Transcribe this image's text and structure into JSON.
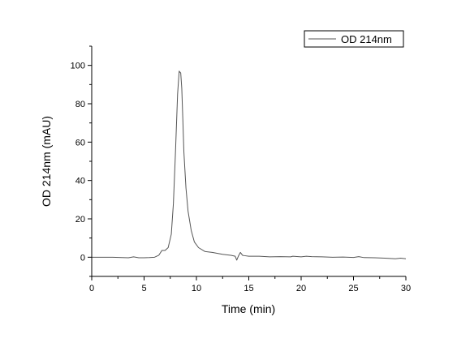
{
  "chart_data": {
    "type": "line",
    "title": "",
    "xlabel": "Time (min)",
    "ylabel": "OD 214nm (mAU)",
    "xlim": [
      0,
      30
    ],
    "ylim": [
      -10,
      110
    ],
    "xticks": [
      0,
      5,
      10,
      15,
      20,
      25,
      30
    ],
    "yticks": [
      0,
      20,
      40,
      60,
      80,
      100
    ],
    "grid": false,
    "legend_position": "top-right",
    "colors": {
      "line": "#555555",
      "axis": "#000000"
    },
    "series": [
      {
        "name": "OD 214nm",
        "x": [
          0,
          2,
          3.5,
          4,
          4.5,
          5,
          5.5,
          6,
          6.4,
          6.7,
          7.0,
          7.3,
          7.6,
          7.8,
          8.0,
          8.2,
          8.35,
          8.5,
          8.6,
          8.7,
          8.8,
          9.0,
          9.2,
          9.5,
          9.8,
          10.2,
          10.8,
          11.5,
          12.5,
          13.3,
          13.7,
          13.85,
          14.0,
          14.2,
          14.4,
          14.6,
          15.0,
          16,
          17,
          18,
          19,
          19.2,
          20,
          20.5,
          21,
          22,
          23,
          24,
          25,
          25.5,
          26,
          27,
          28,
          29,
          29.5,
          30
        ],
        "y": [
          0,
          0,
          -0.3,
          0.2,
          -0.3,
          -0.3,
          -0.2,
          0,
          1,
          3.5,
          3.5,
          5,
          12,
          28,
          55,
          85,
          97,
          96,
          88,
          72,
          55,
          36,
          24,
          14,
          8,
          5,
          3,
          2.5,
          1.5,
          1,
          0.5,
          -1.5,
          0.5,
          2.5,
          1,
          0.8,
          0.5,
          0.5,
          0.2,
          0.3,
          0.2,
          0.5,
          0.2,
          0.5,
          0.3,
          0.2,
          0,
          0.1,
          -0.1,
          0.3,
          -0.2,
          -0.3,
          -0.5,
          -0.8,
          -0.5,
          -0.8
        ]
      }
    ]
  }
}
